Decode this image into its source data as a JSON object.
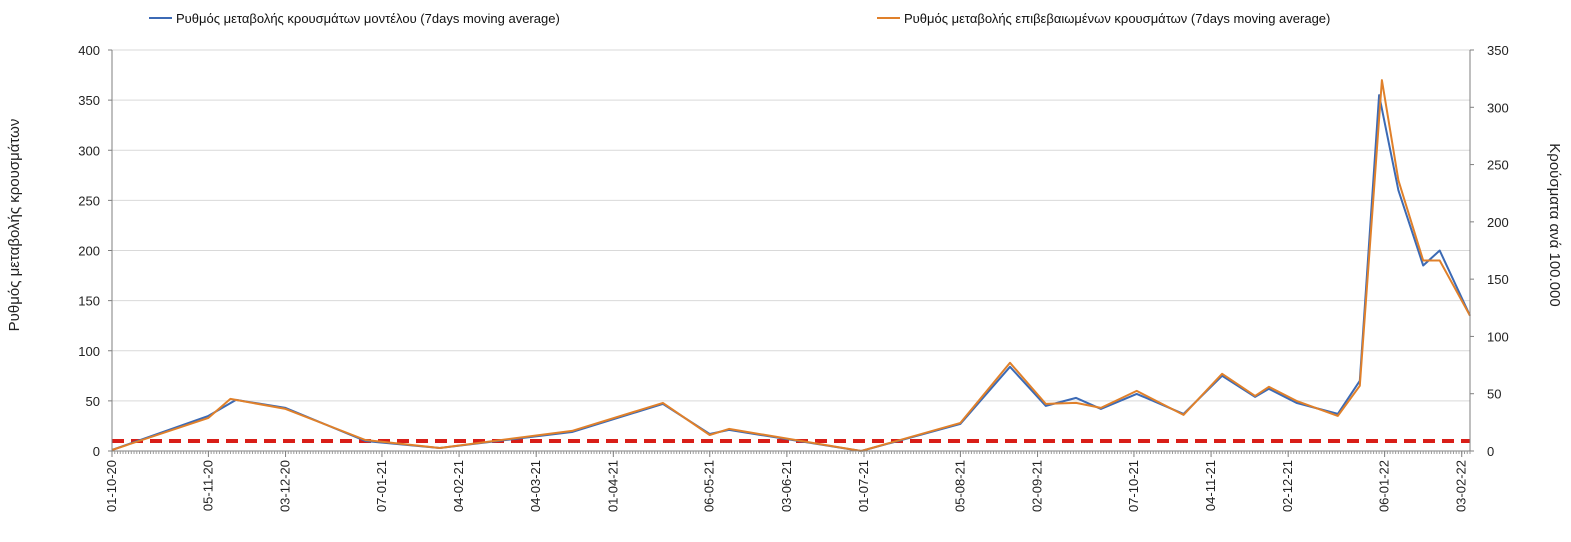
{
  "chart_data": {
    "type": "line",
    "x_axis": {
      "type": "date",
      "tick_labels": [
        "01-10-20",
        "05-11-20",
        "03-12-20",
        "07-01-21",
        "04-02-21",
        "04-03-21",
        "01-04-21",
        "06-05-21",
        "03-06-21",
        "01-07-21",
        "05-08-21",
        "02-09-21",
        "07-10-21",
        "04-11-21",
        "02-12-21",
        "06-01-22",
        "03-02-22"
      ]
    },
    "y_left": {
      "title": "Ρυθμός μεταβολής κρουσμάτων",
      "ylim": [
        0,
        400
      ],
      "ticks": [
        0,
        50,
        100,
        150,
        200,
        250,
        300,
        350,
        400
      ]
    },
    "y_right": {
      "title": "Κρούσματα ανά 100.000",
      "ylim": [
        0,
        350
      ],
      "ticks": [
        0,
        50,
        100,
        150,
        200,
        250,
        300,
        350
      ]
    },
    "grid": true,
    "legend": "top",
    "reference_line": {
      "value": 10,
      "color": "#d91e18",
      "style": "dashed"
    },
    "series": [
      {
        "name": "Ρυθμός μεταβολής κρουσμάτων μοντέλου (7days moving average)",
        "color": "#3c6ab5",
        "x": [
          "2020-10-01",
          "2020-11-05",
          "2020-11-15",
          "2020-12-03",
          "2021-01-01",
          "2021-01-28",
          "2021-03-17",
          "2021-04-19",
          "2021-05-06",
          "2021-05-13",
          "2021-06-30",
          "2021-08-05",
          "2021-08-23",
          "2021-09-05",
          "2021-09-16",
          "2021-09-25",
          "2021-10-08",
          "2021-10-25",
          "2021-11-08",
          "2021-11-20",
          "2021-11-25",
          "2021-12-05",
          "2021-12-20",
          "2021-12-28",
          "2022-01-04",
          "2022-01-11",
          "2022-01-20",
          "2022-01-26",
          "2022-02-06"
        ],
        "values": [
          1,
          35,
          51,
          43,
          10,
          3,
          19,
          47,
          17,
          21,
          0,
          27,
          84,
          45,
          53,
          42,
          57,
          37,
          75,
          54,
          62,
          48,
          37,
          70,
          355,
          260,
          185,
          200,
          135
        ]
      },
      {
        "name": "Ρυθμός μεταβολής επιβεβαιωμένων κρουσμάτων (7days moving average)",
        "color": "#e0802a",
        "x": [
          "2020-10-01",
          "2020-11-05",
          "2020-11-13",
          "2020-12-03",
          "2021-01-01",
          "2021-01-28",
          "2021-03-17",
          "2021-04-19",
          "2021-05-06",
          "2021-05-13",
          "2021-06-30",
          "2021-08-05",
          "2021-08-23",
          "2021-09-05",
          "2021-09-16",
          "2021-09-25",
          "2021-10-08",
          "2021-10-25",
          "2021-11-08",
          "2021-11-20",
          "2021-11-25",
          "2021-12-05",
          "2021-12-20",
          "2021-12-28",
          "2022-01-05",
          "2022-01-11",
          "2022-01-20",
          "2022-01-26",
          "2022-02-06"
        ],
        "values": [
          1,
          33,
          52,
          42,
          11,
          3,
          20,
          48,
          16,
          22,
          0,
          28,
          88,
          47,
          48,
          43,
          60,
          36,
          77,
          55,
          64,
          50,
          35,
          65,
          370,
          270,
          190,
          190,
          135
        ]
      }
    ]
  }
}
